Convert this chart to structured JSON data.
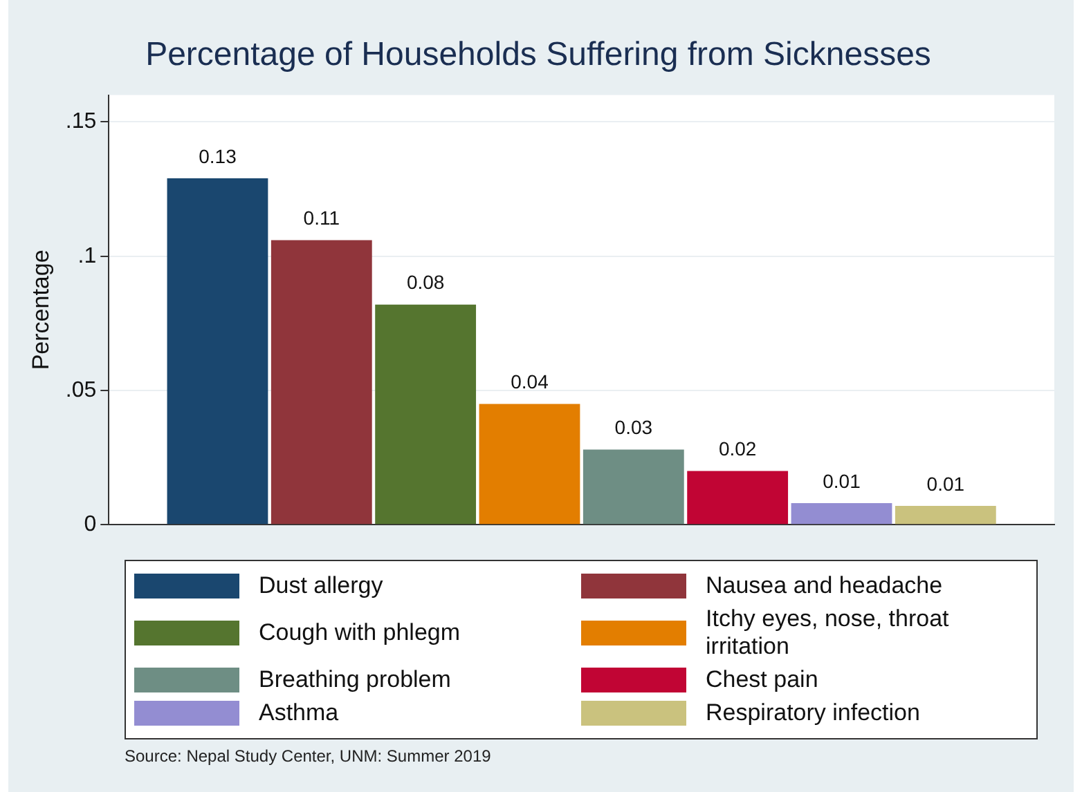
{
  "chart_data": {
    "type": "bar",
    "title": "Percentage of Households Suffering from Sicknesses",
    "ylabel": "Percentage",
    "categories": [
      null
    ],
    "series": [
      {
        "name": "Dust allergy",
        "color": "#1a476f",
        "values": [
          0.129
        ],
        "value_labels": [
          "0.13"
        ]
      },
      {
        "name": "Nausea and headache",
        "color": "#90353b",
        "values": [
          0.106
        ],
        "value_labels": [
          "0.11"
        ]
      },
      {
        "name": "Cough with phlegm",
        "color": "#55752f",
        "values": [
          0.082
        ],
        "value_labels": [
          "0.08"
        ]
      },
      {
        "name": "Itchy eyes, nose, throat irritation",
        "color": "#e37e00",
        "values": [
          0.045
        ],
        "value_labels": [
          "0.04"
        ]
      },
      {
        "name": "Breathing problem",
        "color": "#6e8e84",
        "values": [
          0.028
        ],
        "value_labels": [
          "0.03"
        ]
      },
      {
        "name": "Chest pain",
        "color": "#c10534",
        "values": [
          0.02
        ],
        "value_labels": [
          "0.02"
        ]
      },
      {
        "name": "Asthma",
        "color": "#938dd2",
        "values": [
          0.008
        ],
        "value_labels": [
          "0.01"
        ]
      },
      {
        "name": "Respiratory infection",
        "color": "#cac27e",
        "values": [
          0.007
        ],
        "value_labels": [
          "0.01"
        ]
      }
    ],
    "ylim": [
      0,
      0.16
    ],
    "yticks": [
      {
        "value": 0,
        "label": "0"
      },
      {
        "value": 0.05,
        "label": ".05"
      },
      {
        "value": 0.1,
        "label": ".1"
      },
      {
        "value": 0.15,
        "label": ".15"
      }
    ],
    "grid": "y",
    "legend": "bottom",
    "annotations": [
      "Source: Nepal Study Center, UNM: Summer 2019"
    ]
  }
}
